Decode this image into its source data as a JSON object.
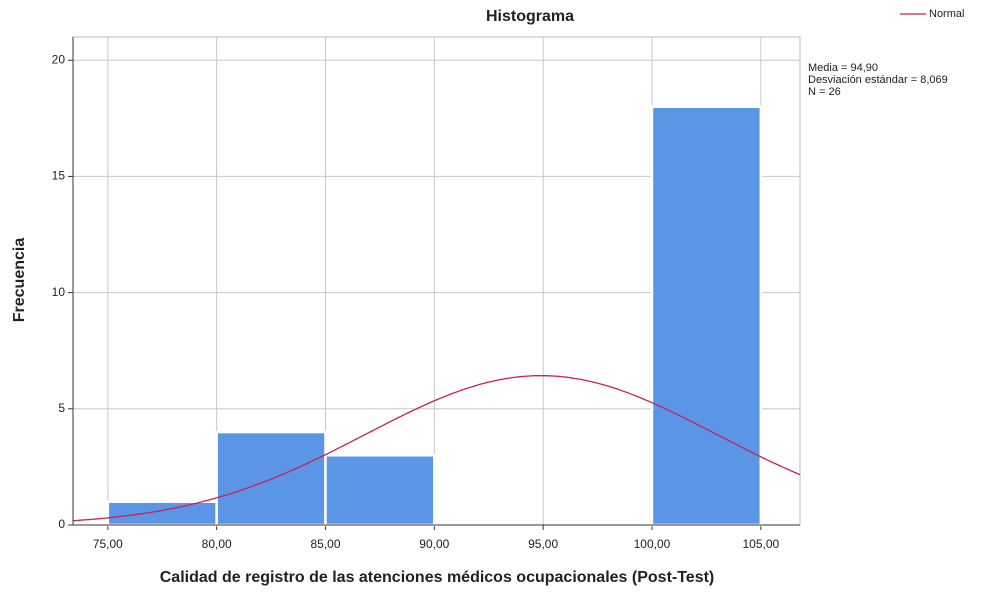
{
  "chart_data": {
    "type": "histogram",
    "title": "Histograma",
    "x_label": "Calidad de registro de las atenciones médicos ocupacionales (Post-Test)",
    "y_label": "Frecuencia",
    "bins": [
      75,
      80,
      85,
      90,
      95,
      100,
      105
    ],
    "values": [
      1,
      4,
      3,
      0,
      0,
      18
    ],
    "color": "#5b95e5",
    "curve_name": "Normal",
    "curve_color": "#c8205a",
    "stats": [
      {
        "value": 94.9,
        "label": "Media = 94,90"
      },
      {
        "value": 8.069,
        "label": "Desviación estándar = 8,069"
      },
      {
        "value": 26,
        "label": "N = 26"
      }
    ],
    "xlim": [
      73.4,
      106.8
    ],
    "ylim": [
      0,
      21
    ],
    "xticks": [
      {
        "value": 75,
        "label": "75,00"
      },
      {
        "value": 80,
        "label": "80,00"
      },
      {
        "value": 85,
        "label": "85,00"
      },
      {
        "value": 90,
        "label": "90,00"
      },
      {
        "value": 95,
        "label": "95,00"
      },
      {
        "value": 100,
        "label": "100,00"
      },
      {
        "value": 105,
        "label": "105,00"
      }
    ],
    "yticks": [
      0,
      5,
      10,
      15,
      20
    ],
    "grid": true
  }
}
